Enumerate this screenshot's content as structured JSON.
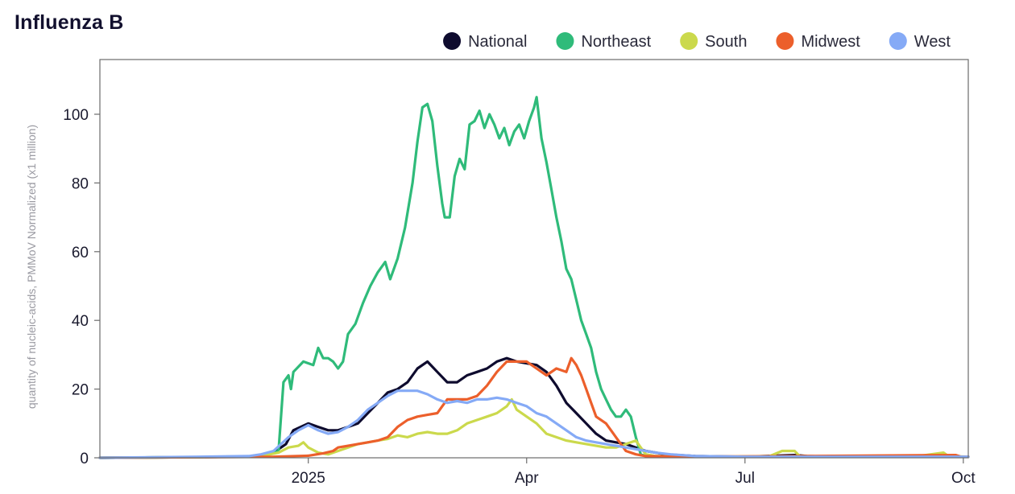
{
  "chart_data": {
    "type": "line",
    "title": "Influenza B",
    "ylabel": "quantity of nucleic-acids, PMMoV Normalized (x1 million)",
    "xlabel": "",
    "xlim": [
      0,
      350
    ],
    "ylim": [
      0,
      112
    ],
    "x_ticks": [
      {
        "label": "2025",
        "value": 84
      },
      {
        "label": "Apr",
        "value": 172
      },
      {
        "label": "Jul",
        "value": 260
      },
      {
        "label": "Oct",
        "value": 348
      }
    ],
    "y_ticks": [
      {
        "label": "0",
        "value": 0
      },
      {
        "label": "20",
        "value": 20
      },
      {
        "label": "40",
        "value": 40
      },
      {
        "label": "60",
        "value": 60
      },
      {
        "label": "80",
        "value": 80
      },
      {
        "label": "100",
        "value": 100
      }
    ],
    "legend_position": "top-right",
    "series": [
      {
        "name": "National",
        "color": "#0e0b2e",
        "points": [
          [
            0,
            0
          ],
          [
            40,
            0.2
          ],
          [
            60,
            0.3
          ],
          [
            65,
            0.8
          ],
          [
            70,
            1.5
          ],
          [
            75,
            4
          ],
          [
            78,
            8
          ],
          [
            84,
            10
          ],
          [
            88,
            9
          ],
          [
            92,
            8
          ],
          [
            96,
            8
          ],
          [
            100,
            9
          ],
          [
            104,
            10
          ],
          [
            108,
            13
          ],
          [
            112,
            16
          ],
          [
            116,
            19
          ],
          [
            120,
            20
          ],
          [
            124,
            22
          ],
          [
            128,
            26
          ],
          [
            132,
            28
          ],
          [
            136,
            25
          ],
          [
            140,
            22
          ],
          [
            144,
            22
          ],
          [
            148,
            24
          ],
          [
            152,
            25
          ],
          [
            156,
            26
          ],
          [
            160,
            28
          ],
          [
            164,
            29
          ],
          [
            168,
            28
          ],
          [
            172,
            27.5
          ],
          [
            176,
            27
          ],
          [
            180,
            25
          ],
          [
            184,
            21
          ],
          [
            188,
            16
          ],
          [
            192,
            13
          ],
          [
            196,
            10
          ],
          [
            200,
            7
          ],
          [
            204,
            5
          ],
          [
            208,
            4.5
          ],
          [
            212,
            4
          ],
          [
            216,
            3
          ],
          [
            220,
            2
          ],
          [
            224,
            1.5
          ],
          [
            228,
            1
          ],
          [
            240,
            0.5
          ],
          [
            260,
            0.3
          ],
          [
            280,
            0.8
          ],
          [
            285,
            0.5
          ],
          [
            300,
            0.3
          ],
          [
            350,
            0.3
          ]
        ]
      },
      {
        "name": "Northeast",
        "color": "#2fbb7a",
        "points": [
          [
            0,
            0
          ],
          [
            40,
            0.2
          ],
          [
            60,
            0.3
          ],
          [
            68,
            1
          ],
          [
            72,
            2
          ],
          [
            74,
            22
          ],
          [
            76,
            24
          ],
          [
            77,
            20
          ],
          [
            78,
            25
          ],
          [
            82,
            28
          ],
          [
            86,
            27
          ],
          [
            88,
            32
          ],
          [
            90,
            29
          ],
          [
            92,
            29
          ],
          [
            94,
            28
          ],
          [
            96,
            26
          ],
          [
            98,
            28
          ],
          [
            100,
            36
          ],
          [
            103,
            39
          ],
          [
            106,
            45
          ],
          [
            109,
            50
          ],
          [
            112,
            54
          ],
          [
            115,
            57
          ],
          [
            117,
            52
          ],
          [
            120,
            58
          ],
          [
            123,
            67
          ],
          [
            126,
            80
          ],
          [
            128,
            92
          ],
          [
            130,
            102
          ],
          [
            132,
            103
          ],
          [
            134,
            98
          ],
          [
            136,
            85
          ],
          [
            138,
            74
          ],
          [
            139,
            70
          ],
          [
            141,
            70
          ],
          [
            143,
            82
          ],
          [
            145,
            87
          ],
          [
            147,
            84
          ],
          [
            149,
            97
          ],
          [
            151,
            98
          ],
          [
            153,
            101
          ],
          [
            155,
            96
          ],
          [
            157,
            100
          ],
          [
            159,
            97
          ],
          [
            161,
            93
          ],
          [
            163,
            96
          ],
          [
            165,
            91
          ],
          [
            167,
            95
          ],
          [
            169,
            97
          ],
          [
            171,
            93
          ],
          [
            173,
            98
          ],
          [
            175,
            102
          ],
          [
            176,
            105
          ],
          [
            178,
            93
          ],
          [
            180,
            86
          ],
          [
            182,
            78
          ],
          [
            184,
            70
          ],
          [
            186,
            63
          ],
          [
            188,
            55
          ],
          [
            190,
            52
          ],
          [
            192,
            46
          ],
          [
            194,
            40
          ],
          [
            196,
            36
          ],
          [
            198,
            32
          ],
          [
            200,
            25
          ],
          [
            202,
            20
          ],
          [
            204,
            17
          ],
          [
            206,
            14
          ],
          [
            208,
            12
          ],
          [
            210,
            12
          ],
          [
            212,
            14
          ],
          [
            214,
            12
          ],
          [
            216,
            6
          ],
          [
            218,
            1
          ],
          [
            220,
            0.5
          ],
          [
            240,
            0.3
          ],
          [
            350,
            0.3
          ]
        ]
      },
      {
        "name": "South",
        "color": "#cbd94c",
        "points": [
          [
            0,
            0
          ],
          [
            40,
            0.2
          ],
          [
            65,
            0.5
          ],
          [
            72,
            1.5
          ],
          [
            76,
            3
          ],
          [
            80,
            3.5
          ],
          [
            82,
            4.5
          ],
          [
            84,
            3
          ],
          [
            88,
            1.5
          ],
          [
            92,
            1
          ],
          [
            96,
            2
          ],
          [
            100,
            3
          ],
          [
            104,
            4
          ],
          [
            108,
            4.5
          ],
          [
            112,
            5
          ],
          [
            116,
            5.5
          ],
          [
            120,
            6.5
          ],
          [
            124,
            6
          ],
          [
            128,
            7
          ],
          [
            132,
            7.5
          ],
          [
            136,
            7
          ],
          [
            140,
            7
          ],
          [
            144,
            8
          ],
          [
            148,
            10
          ],
          [
            152,
            11
          ],
          [
            156,
            12
          ],
          [
            160,
            13
          ],
          [
            164,
            15
          ],
          [
            166,
            17
          ],
          [
            168,
            14
          ],
          [
            172,
            12
          ],
          [
            176,
            10
          ],
          [
            180,
            7
          ],
          [
            184,
            6
          ],
          [
            188,
            5
          ],
          [
            192,
            4.5
          ],
          [
            196,
            4
          ],
          [
            200,
            3.5
          ],
          [
            204,
            3
          ],
          [
            208,
            3
          ],
          [
            212,
            4
          ],
          [
            216,
            5
          ],
          [
            218,
            3
          ],
          [
            220,
            1
          ],
          [
            224,
            0.5
          ],
          [
            250,
            0.3
          ],
          [
            270,
            0.5
          ],
          [
            275,
            2
          ],
          [
            280,
            2
          ],
          [
            282,
            0.5
          ],
          [
            300,
            0.3
          ],
          [
            330,
            0.5
          ],
          [
            340,
            1.5
          ],
          [
            342,
            0.5
          ],
          [
            350,
            0.3
          ]
        ]
      },
      {
        "name": "Midwest",
        "color": "#ec5f2b",
        "points": [
          [
            0,
            0
          ],
          [
            70,
            0.3
          ],
          [
            84,
            0.6
          ],
          [
            90,
            1.3
          ],
          [
            94,
            2
          ],
          [
            96,
            3
          ],
          [
            100,
            3.5
          ],
          [
            104,
            4
          ],
          [
            108,
            4.5
          ],
          [
            112,
            5
          ],
          [
            116,
            6
          ],
          [
            120,
            9
          ],
          [
            124,
            11
          ],
          [
            128,
            12
          ],
          [
            132,
            12.5
          ],
          [
            136,
            13
          ],
          [
            138,
            15
          ],
          [
            140,
            17
          ],
          [
            144,
            17
          ],
          [
            148,
            17
          ],
          [
            152,
            18
          ],
          [
            156,
            21
          ],
          [
            160,
            25
          ],
          [
            164,
            28
          ],
          [
            168,
            28
          ],
          [
            172,
            28
          ],
          [
            176,
            26
          ],
          [
            180,
            24
          ],
          [
            184,
            26
          ],
          [
            188,
            25
          ],
          [
            190,
            29
          ],
          [
            192,
            27
          ],
          [
            194,
            24
          ],
          [
            196,
            20
          ],
          [
            198,
            16
          ],
          [
            200,
            12
          ],
          [
            204,
            10
          ],
          [
            208,
            6
          ],
          [
            212,
            2
          ],
          [
            216,
            1
          ],
          [
            220,
            0.5
          ],
          [
            240,
            0.3
          ],
          [
            350,
            0.3
          ],
          [
            345,
            0.8
          ],
          [
            347,
            0.3
          ]
        ]
      },
      {
        "name": "West",
        "color": "#85aaf6",
        "points": [
          [
            0,
            0
          ],
          [
            40,
            0.3
          ],
          [
            60,
            0.5
          ],
          [
            65,
            1
          ],
          [
            70,
            2
          ],
          [
            76,
            6
          ],
          [
            80,
            8
          ],
          [
            84,
            9.5
          ],
          [
            88,
            8
          ],
          [
            92,
            7
          ],
          [
            96,
            7.5
          ],
          [
            100,
            9
          ],
          [
            104,
            11
          ],
          [
            108,
            14
          ],
          [
            112,
            16
          ],
          [
            116,
            18
          ],
          [
            120,
            19.5
          ],
          [
            124,
            19.5
          ],
          [
            128,
            19.5
          ],
          [
            132,
            18.5
          ],
          [
            136,
            17
          ],
          [
            140,
            16
          ],
          [
            144,
            16.5
          ],
          [
            148,
            16
          ],
          [
            152,
            17
          ],
          [
            156,
            17
          ],
          [
            160,
            17.5
          ],
          [
            164,
            17
          ],
          [
            168,
            16
          ],
          [
            172,
            15
          ],
          [
            176,
            13
          ],
          [
            180,
            12
          ],
          [
            184,
            10
          ],
          [
            188,
            8
          ],
          [
            192,
            6
          ],
          [
            196,
            5
          ],
          [
            200,
            4.5
          ],
          [
            204,
            4
          ],
          [
            208,
            3.5
          ],
          [
            212,
            3
          ],
          [
            216,
            2.5
          ],
          [
            220,
            2
          ],
          [
            224,
            1.5
          ],
          [
            230,
            1
          ],
          [
            240,
            0.5
          ],
          [
            260,
            0.3
          ],
          [
            350,
            0.3
          ]
        ]
      }
    ]
  }
}
